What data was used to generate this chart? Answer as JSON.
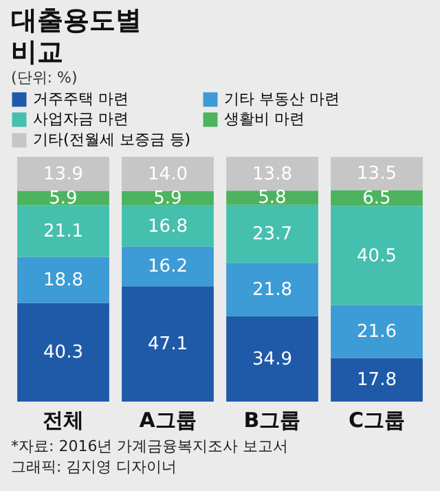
{
  "chart_data": {
    "type": "bar",
    "title": [
      "대출용도별",
      "비교"
    ],
    "subtitle": "(단위: %)",
    "categories": [
      "전체",
      "A그룹",
      "B그룹",
      "C그룹"
    ],
    "stacked": true,
    "legend": "top",
    "tick_labels": "x",
    "series": [
      {
        "name": "거주주택 마련",
        "color": "#1e5aa8",
        "values": [
          40.3,
          47.1,
          34.9,
          17.8
        ],
        "value_labels": [
          "40.3",
          "47.1",
          "34.9",
          "17.8"
        ]
      },
      {
        "name": "기타 부동산 마련",
        "color": "#3d9bd6",
        "values": [
          18.8,
          16.2,
          21.8,
          21.6
        ],
        "value_labels": [
          "18.8",
          "16.2",
          "21.8",
          "21.6"
        ]
      },
      {
        "name": "사업자금 마련",
        "color": "#45bfae",
        "values": [
          21.1,
          16.8,
          23.7,
          40.5
        ],
        "value_labels": [
          "21.1",
          "16.8",
          "23.7",
          "40.5"
        ]
      },
      {
        "name": "생활비 마련",
        "color": "#4db35e",
        "values": [
          5.9,
          5.9,
          5.8,
          6.5
        ],
        "value_labels": [
          "5.9",
          "5.9",
          "5.8",
          "6.5"
        ]
      },
      {
        "name": "기타(전월세 보증금 등)",
        "color": "#c6c6c6",
        "values": [
          13.9,
          14.0,
          13.8,
          13.5
        ],
        "value_labels": [
          "13.9",
          "14.0",
          "13.8",
          "13.5"
        ]
      }
    ],
    "annotations": [
      "*자료: 2016년 가계금융복지조사 보고서",
      "그래픽: 김지영 디자이너"
    ]
  }
}
